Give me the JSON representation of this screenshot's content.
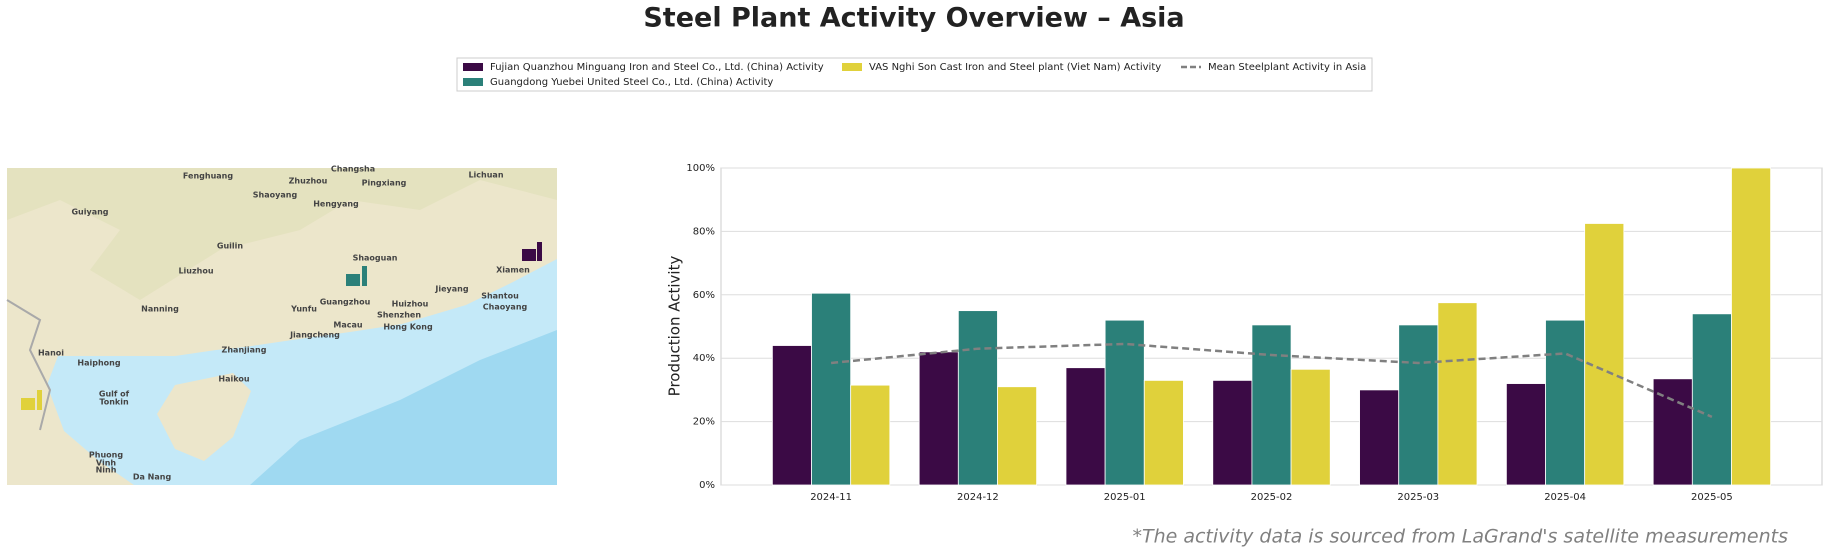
{
  "chart_data": {
    "type": "bar",
    "title": "Steel Plant Activity Overview – Asia",
    "ylabel": "Production Activity",
    "source_note": "*The activity data is sourced from LaGrand's satellite measurements",
    "categories": [
      "2024-11",
      "2024-12",
      "2025-01",
      "2025-02",
      "2025-03",
      "2025-04",
      "2025-05"
    ],
    "series": [
      {
        "name": "Fujian Quanzhou Minguang Iron and Steel Co., Ltd. (China) Activity",
        "color": "#3b0a45",
        "values": [
          44,
          42,
          37,
          33,
          30,
          32,
          33.5
        ]
      },
      {
        "name": "Guangdong Yuebei United Steel Co., Ltd. (China) Activity",
        "color": "#2b8079",
        "values": [
          60.5,
          55,
          52,
          50.5,
          50.5,
          52,
          54
        ]
      },
      {
        "name": "VAS Nghi Son Cast Iron and Steel plant (Viet Nam) Activity",
        "color": "#e0d13b",
        "values": [
          31.5,
          31,
          33,
          36.5,
          57.5,
          82.5,
          100
        ]
      },
      {
        "name": "Mean Steelplant Activity in Asia",
        "color": "#808080",
        "type": "line",
        "values": [
          38.5,
          43,
          44.5,
          41,
          38.5,
          41.5,
          21.5
        ]
      }
    ],
    "ylim": [
      0,
      100
    ],
    "yticks": [
      {
        "value": 0,
        "label": "0%"
      },
      {
        "value": 20,
        "label": "20%"
      },
      {
        "value": 40,
        "label": "40%"
      },
      {
        "value": 60,
        "label": "60%"
      },
      {
        "value": 80,
        "label": "80%"
      },
      {
        "value": 100,
        "label": "100%"
      }
    ],
    "grid": true
  },
  "map": {
    "labels": [
      "Fenghuang",
      "Changsha",
      "Zhuzhou",
      "Pingxiang",
      "Lichuan",
      "Shaoyang",
      "Hengyang",
      "Guiyang",
      "Guilin",
      "Shaoguan",
      "Liuzhou",
      "Nanning",
      "Yunfu",
      "Guangzhou",
      "Huizhou",
      "Jieyang",
      "Xiamen",
      "Shantou",
      "Chaoyang",
      "Shenzhen",
      "Macau",
      "Hong Kong",
      "Jiangcheng",
      "Zhanjiang",
      "Haikou",
      "Hanoi",
      "Haiphong",
      "Gulf of",
      "Tonkin",
      "Phuong",
      "Vinh",
      "Ninh",
      "Da Nang"
    ]
  }
}
